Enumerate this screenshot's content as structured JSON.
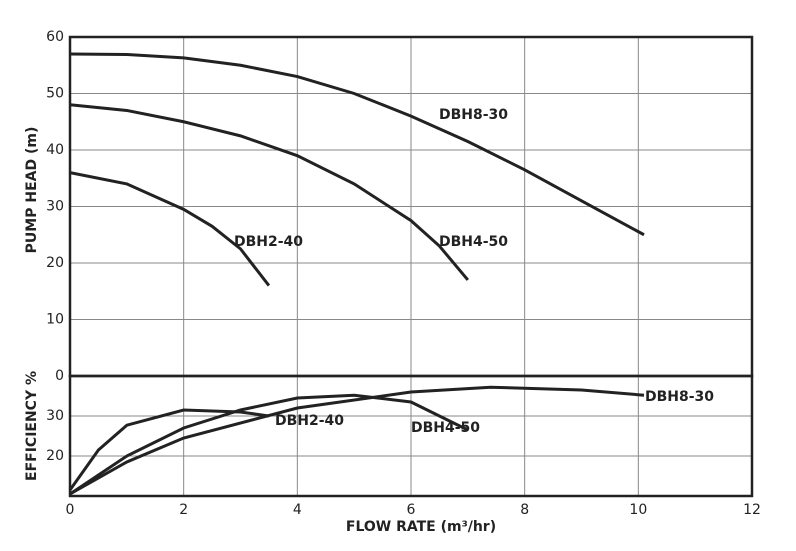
{
  "chart_data": [
    {
      "type": "line",
      "ylabel": "PUMP HEAD (m)",
      "ylim": [
        0,
        60
      ],
      "yticks": [
        0,
        10,
        20,
        30,
        40,
        50,
        60
      ],
      "grid": true,
      "series": [
        {
          "name": "DBH8-30",
          "color": "#222222",
          "x": [
            0,
            1,
            2,
            3,
            4,
            5,
            6,
            7,
            8,
            9,
            10.1
          ],
          "values": [
            57,
            56.9,
            56.3,
            55,
            53,
            50,
            46,
            41.5,
            36.5,
            31,
            25
          ]
        },
        {
          "name": "DBH4-50",
          "color": "#222222",
          "x": [
            0,
            1,
            2,
            3,
            4,
            5,
            6,
            6.5,
            7
          ],
          "values": [
            48,
            47,
            45,
            42.5,
            39,
            34,
            27.5,
            23,
            17
          ]
        },
        {
          "name": "DBH2-40",
          "color": "#222222",
          "x": [
            0,
            1,
            2,
            2.5,
            3,
            3.5
          ],
          "values": [
            36,
            34,
            29.5,
            26.5,
            22.5,
            16
          ]
        }
      ]
    },
    {
      "type": "line",
      "ylabel": "EFFICIENCY %",
      "xlabel": "FLOW RATE (m³/hr)",
      "xlim": [
        0,
        12
      ],
      "xticks": [
        0,
        2,
        4,
        6,
        8,
        10,
        12
      ],
      "ylim": [
        10,
        40
      ],
      "yticks": [
        20,
        30
      ],
      "grid": true,
      "series": [
        {
          "name": "DBH2-40",
          "color": "#222222",
          "x": [
            0,
            0.5,
            1,
            2,
            3,
            3.5
          ],
          "values": [
            11.5,
            21.5,
            27.7,
            31.5,
            31,
            30
          ]
        },
        {
          "name": "DBH4-50",
          "color": "#222222",
          "x": [
            0,
            1,
            2,
            3,
            4,
            5,
            6,
            7
          ],
          "values": [
            10.5,
            20,
            27,
            31.5,
            34.5,
            35.2,
            33.5,
            26.5
          ]
        },
        {
          "name": "DBH8-30",
          "color": "#222222",
          "x": [
            0,
            1,
            2,
            4,
            6,
            7.4,
            9,
            10.1
          ],
          "values": [
            10.5,
            18.5,
            24.5,
            32,
            36,
            37.2,
            36.5,
            35.2
          ]
        }
      ]
    }
  ]
}
